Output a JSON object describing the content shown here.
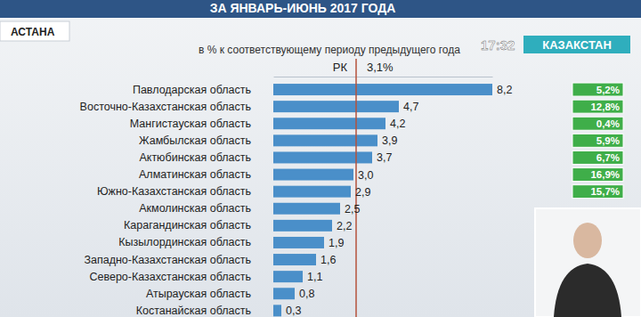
{
  "screen": {
    "location": "АСТАНА",
    "time": "17:32",
    "channel": "КАЗАКСТАН"
  },
  "chart_data": {
    "type": "bar",
    "title": "ЗА ЯНВАРЬ-ИЮНЬ 2017 ГОДА",
    "subtitle": "в % к соответствующему периоду предыдущего года",
    "orientation": "horizontal",
    "categories": [
      "Павлодарская область",
      "Восточно-Казахстанская область",
      "Мангистауская область",
      "Жамбылская область",
      "Актюбинская область",
      "Алматинская область",
      "Южно-Казахстанская область",
      "Акмолинская область",
      "Карагандинская область",
      "Кызылординская область",
      "Западно-Казахстанская область",
      "Северо-Казахстанская область",
      "Атырауская область",
      "Костанайская область"
    ],
    "values": [
      8.2,
      4.7,
      4.2,
      3.9,
      3.7,
      3.0,
      2.9,
      2.5,
      2.2,
      1.9,
      1.6,
      1.1,
      0.8,
      0.3
    ],
    "value_labels": [
      "8,2",
      "4,7",
      "4,2",
      "3,9",
      "3,7",
      "3,0",
      "2,9",
      "2,5",
      "2,2",
      "1,9",
      "1,6",
      "1,1",
      "0,8",
      "0,3"
    ],
    "color": "#4a8fc9",
    "xlim": [
      0,
      8.2
    ],
    "xticks": [],
    "grid": false,
    "data_labels": true,
    "tick_labels": "y",
    "reference": {
      "label": "РК",
      "value": 3.1,
      "value_label": "3,1%",
      "color": "#b5523b"
    },
    "shares": {
      "values": [
        5.2,
        12.8,
        0.4,
        5.9,
        6.7,
        16.9,
        15.7,
        null,
        null,
        null,
        null,
        null,
        null,
        null
      ],
      "value_labels": [
        "5,2%",
        "12,8%",
        "0,4%",
        "5,9%",
        "6,7%",
        "16,9%",
        "15,7%",
        null,
        null,
        null,
        null,
        null,
        null,
        null
      ],
      "color": "#3fae49"
    }
  }
}
